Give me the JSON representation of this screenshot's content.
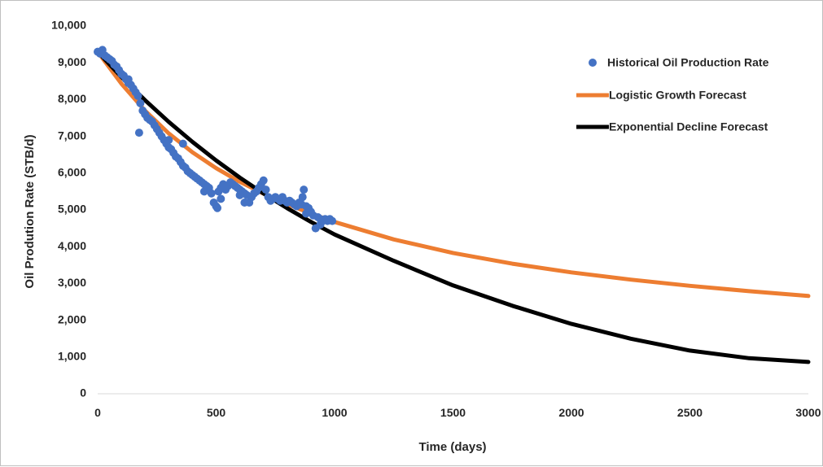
{
  "chart_data": {
    "type": "scatter",
    "title": "",
    "xlabel": "Time (days)",
    "ylabel": "Oil Prodution Rate (STB/d)",
    "xlim": [
      0,
      3000
    ],
    "ylim": [
      0,
      10000
    ],
    "x_ticks": [
      "0",
      "500",
      "1000",
      "1500",
      "2000",
      "2500",
      "3000"
    ],
    "y_ticks": [
      "0",
      "1,000",
      "2,000",
      "3,000",
      "4,000",
      "5,000",
      "6,000",
      "7,000",
      "8,000",
      "9,000",
      "10,000"
    ],
    "grid": false,
    "legend_position": "top-right",
    "series": [
      {
        "name": "Historical Oil Production Rate",
        "kind": "scatter",
        "color": "#4472C4",
        "points": [
          [
            0,
            9300
          ],
          [
            10,
            9250
          ],
          [
            20,
            9350
          ],
          [
            30,
            9200
          ],
          [
            40,
            9150
          ],
          [
            50,
            9100
          ],
          [
            60,
            9050
          ],
          [
            70,
            8950
          ],
          [
            80,
            8900
          ],
          [
            90,
            8800
          ],
          [
            100,
            8700
          ],
          [
            110,
            8650
          ],
          [
            120,
            8550
          ],
          [
            130,
            8450
          ],
          [
            140,
            8400
          ],
          [
            150,
            8300
          ],
          [
            160,
            8200
          ],
          [
            170,
            8100
          ],
          [
            180,
            7900
          ],
          [
            190,
            7700
          ],
          [
            200,
            7600
          ],
          [
            210,
            7500
          ],
          [
            220,
            7450
          ],
          [
            230,
            7400
          ],
          [
            240,
            7300
          ],
          [
            250,
            7200
          ],
          [
            260,
            7100
          ],
          [
            270,
            7000
          ],
          [
            280,
            6900
          ],
          [
            290,
            6800
          ],
          [
            300,
            6700
          ],
          [
            310,
            6650
          ],
          [
            320,
            6550
          ],
          [
            330,
            6450
          ],
          [
            340,
            6400
          ],
          [
            350,
            6300
          ],
          [
            360,
            6200
          ],
          [
            370,
            6150
          ],
          [
            380,
            6050
          ],
          [
            390,
            6000
          ],
          [
            400,
            5950
          ],
          [
            410,
            5900
          ],
          [
            420,
            5850
          ],
          [
            430,
            5800
          ],
          [
            440,
            5750
          ],
          [
            450,
            5700
          ],
          [
            460,
            5650
          ],
          [
            470,
            5600
          ],
          [
            480,
            5450
          ],
          [
            490,
            5200
          ],
          [
            500,
            5100
          ],
          [
            510,
            5500
          ],
          [
            520,
            5600
          ],
          [
            530,
            5700
          ],
          [
            540,
            5550
          ],
          [
            550,
            5650
          ],
          [
            560,
            5750
          ],
          [
            570,
            5700
          ],
          [
            580,
            5650
          ],
          [
            590,
            5600
          ],
          [
            600,
            5550
          ],
          [
            610,
            5500
          ],
          [
            620,
            5450
          ],
          [
            630,
            5400
          ],
          [
            640,
            5200
          ],
          [
            650,
            5350
          ],
          [
            660,
            5450
          ],
          [
            670,
            5500
          ],
          [
            680,
            5600
          ],
          [
            690,
            5700
          ],
          [
            700,
            5800
          ],
          [
            710,
            5550
          ],
          [
            720,
            5350
          ],
          [
            730,
            5250
          ],
          [
            740,
            5300
          ],
          [
            750,
            5350
          ],
          [
            760,
            5300
          ],
          [
            770,
            5250
          ],
          [
            780,
            5350
          ],
          [
            790,
            5250
          ],
          [
            800,
            5200
          ],
          [
            810,
            5250
          ],
          [
            820,
            5200
          ],
          [
            830,
            5150
          ],
          [
            840,
            5100
          ],
          [
            850,
            5200
          ],
          [
            860,
            5150
          ],
          [
            870,
            5550
          ],
          [
            880,
            5100
          ],
          [
            890,
            5050
          ],
          [
            900,
            4950
          ],
          [
            910,
            4850
          ],
          [
            920,
            4500
          ],
          [
            930,
            4800
          ],
          [
            940,
            4750
          ],
          [
            950,
            4700
          ],
          [
            960,
            4750
          ],
          [
            970,
            4700
          ],
          [
            980,
            4750
          ],
          [
            990,
            4700
          ],
          [
            175,
            7100
          ],
          [
            360,
            6800
          ],
          [
            505,
            5050
          ],
          [
            600,
            5400
          ],
          [
            865,
            5350
          ],
          [
            130,
            8550
          ],
          [
            300,
            6900
          ],
          [
            450,
            5500
          ],
          [
            520,
            5300
          ],
          [
            620,
            5200
          ],
          [
            880,
            4900
          ],
          [
            940,
            4600
          ]
        ]
      },
      {
        "name": "Logistic Growth Forecast",
        "kind": "line",
        "color": "#ED7D31",
        "points": [
          [
            0,
            9300
          ],
          [
            100,
            8434
          ],
          [
            200,
            7697
          ],
          [
            300,
            7080
          ],
          [
            400,
            6567
          ],
          [
            500,
            6135
          ],
          [
            600,
            5765
          ],
          [
            700,
            5443
          ],
          [
            800,
            5158
          ],
          [
            900,
            4903
          ],
          [
            1000,
            4672
          ],
          [
            1250,
            4197
          ],
          [
            1500,
            3830
          ],
          [
            1750,
            3538
          ],
          [
            2000,
            3300
          ],
          [
            2250,
            3103
          ],
          [
            2500,
            2935
          ],
          [
            2750,
            2789
          ],
          [
            3000,
            2660
          ]
        ]
      },
      {
        "name": "Exponential Decline Forecast",
        "kind": "line",
        "color": "#000000",
        "points": [
          [
            0,
            9300
          ],
          [
            100,
            8616
          ],
          [
            200,
            7982
          ],
          [
            300,
            7394
          ],
          [
            400,
            6850
          ],
          [
            500,
            6346
          ],
          [
            600,
            5879
          ],
          [
            700,
            5447
          ],
          [
            800,
            5046
          ],
          [
            900,
            4675
          ],
          [
            1000,
            4331
          ],
          [
            1250,
            3614
          ],
          [
            1500,
            2948
          ],
          [
            1750,
            2393
          ],
          [
            2000,
            1900
          ],
          [
            2250,
            1498
          ],
          [
            2500,
            1175
          ],
          [
            2750,
            967
          ],
          [
            3000,
            865
          ]
        ]
      }
    ]
  }
}
